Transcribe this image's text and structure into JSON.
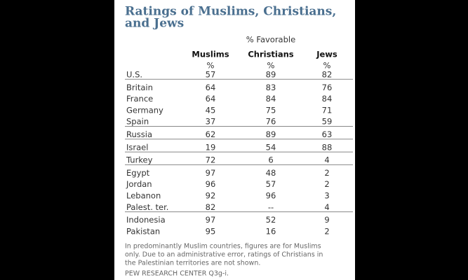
{
  "title": [
    "Ratings of Muslims, Christians,",
    "and Jews"
  ],
  "table": {
    "super_header": "% Favorable",
    "columns": [
      "Muslims",
      "Christians",
      "Jews"
    ],
    "unit_row": [
      "%",
      "%",
      "%"
    ],
    "groups": [
      [
        [
          "U.S.",
          57,
          89,
          82
        ]
      ],
      [
        [
          "Britain",
          64,
          83,
          76
        ],
        [
          "France",
          64,
          84,
          84
        ],
        [
          "Germany",
          45,
          75,
          71
        ],
        [
          "Spain",
          37,
          76,
          59
        ]
      ],
      [
        [
          "Russia",
          62,
          89,
          63
        ]
      ],
      [
        [
          "Israel",
          19,
          54,
          88
        ]
      ],
      [
        [
          "Turkey",
          72,
          6,
          4
        ]
      ],
      [
        [
          "Egypt",
          97,
          48,
          2
        ],
        [
          "Jordan",
          96,
          57,
          2
        ],
        [
          "Lebanon",
          92,
          96,
          3
        ],
        [
          "Palest. ter.",
          82,
          "--",
          4
        ]
      ],
      [
        [
          "Indonesia",
          97,
          52,
          9
        ],
        [
          "Pakistan",
          95,
          16,
          2
        ]
      ]
    ]
  },
  "footnote": [
    "In predominantly Muslim countries, figures are for Muslims",
    "only.  Due to an administrative error, ratings of Christians in",
    "the Palestinian territories are not shown."
  ],
  "source": "PEW RESEARCH CENTER Q3g-i."
}
